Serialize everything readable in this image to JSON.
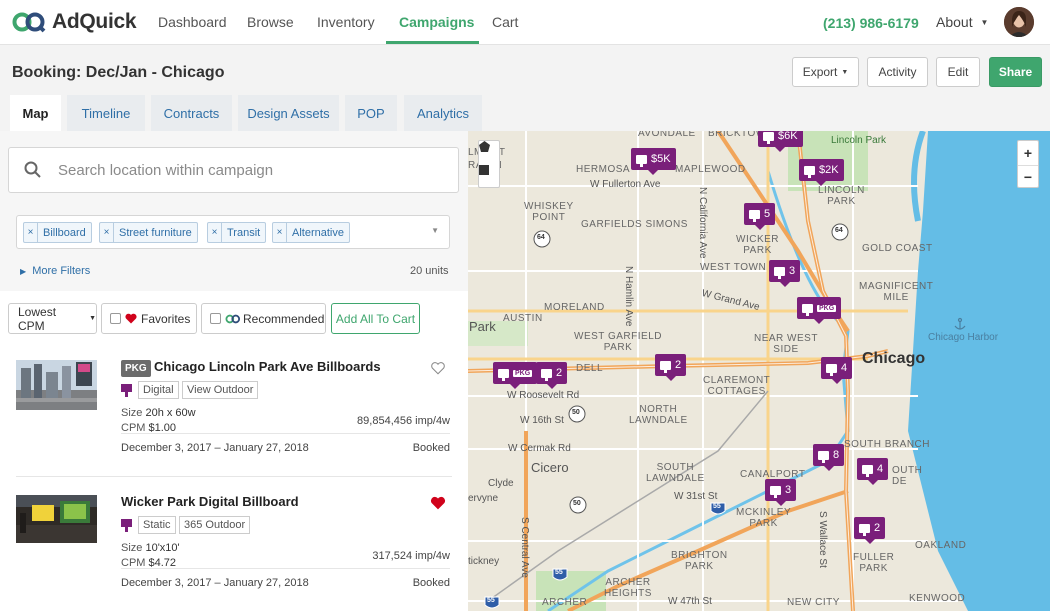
{
  "brand": {
    "name": "AdQuick"
  },
  "nav": {
    "links": [
      "Dashboard",
      "Browse",
      "Inventory",
      "Campaigns",
      "Cart"
    ],
    "active": "Campaigns",
    "phone": "(213) 986-6179",
    "about": "About"
  },
  "header": {
    "title": "Booking: Dec/Jan - Chicago",
    "export_label": "Export",
    "activity_label": "Activity",
    "edit_label": "Edit",
    "share_label": "Share"
  },
  "tabs": [
    {
      "label": "Map",
      "active": true
    },
    {
      "label": "Timeline"
    },
    {
      "label": "Contracts"
    },
    {
      "label": "Design Assets"
    },
    {
      "label": "POP"
    },
    {
      "label": "Analytics"
    }
  ],
  "search": {
    "placeholder": "Search location within campaign"
  },
  "filters": {
    "chips": [
      "Billboard",
      "Street furniture",
      "Transit",
      "Alternative"
    ],
    "more_filters": "More Filters",
    "units": "20 units"
  },
  "controls": {
    "sort": "Lowest CPM",
    "favorites": "Favorites",
    "recommended": "Recommended",
    "add_all": "Add All To Cart"
  },
  "listings": [
    {
      "badge": "PKG",
      "title": "Chicago Lincoln Park Ave Billboards",
      "tags": [
        "Digital",
        "View Outdoor"
      ],
      "size_label": "Size",
      "size": "20h x 60w",
      "cpm_label": "CPM",
      "cpm": "$1.00",
      "impressions": "89,854,456 imp/4w",
      "dates": "December 3, 2017 – January 27, 2018",
      "status": "Booked",
      "favorited": false
    },
    {
      "badge": "",
      "title": "Wicker Park Digital Billboard",
      "tags": [
        "Static",
        "365 Outdoor"
      ],
      "size_label": "Size",
      "size": "10'x10'",
      "cpm_label": "CPM",
      "cpm": "$4.72",
      "impressions": "317,524 imp/4w",
      "dates": "December 3, 2017 – January 27, 2018",
      "status": "Booked",
      "favorited": true
    }
  ],
  "map": {
    "pins": [
      "$6K",
      "$5K",
      "$2K",
      "5",
      "3",
      "PKG",
      "PKG",
      "2",
      "2",
      "4",
      "8",
      "4",
      "3",
      "2"
    ],
    "zoom_in": "+",
    "zoom_out": "−",
    "labels": {
      "avondale": "AVONDALE",
      "bricktown": "BRICKTOWN",
      "lincoln_park_top": "Lincoln Park",
      "almont": "LMONT",
      "craigin": "RAGIN",
      "hermosa": "HERMOSA",
      "maplewood": "MAPLEWOOD",
      "fullerton": "W Fullerton Ave",
      "whiskey_point": "WHISKEY\nPOINT",
      "garfields": "GARFIELDS SIMONS",
      "lincoln_park": "LINCOLN\nPARK",
      "wicker_park": "WICKER\nPARK",
      "west_town": "WEST TOWN",
      "gold_coast": "GOLD COAST",
      "magnificent_mile": "MAGNIFICENT\nMILE",
      "grand_ave": "W Grand Ave",
      "moreland": "MORELAND",
      "austin": "AUSTIN",
      "park": "Park",
      "west_garfield": "WEST GARFIELD\nPARK",
      "near_west": "NEAR WEST\nSIDE",
      "chicago": "Chicago",
      "chicago_harbor": "Chicago Harbor",
      "dell": "DELL",
      "roosevelt": "W Roosevelt Rd",
      "claremont": "CLAREMONT\nCOTTAGES",
      "north_lawndale": "NORTH\nLAWNDALE",
      "w16th": "W 16th St",
      "cermak": "W Cermak Rd",
      "south_branch": "SOUTH BRANCH",
      "clyde": "Clyde",
      "cicero": "Cicero",
      "south_lawndale": "SOUTH\nLAWNDALE",
      "canalport": "CANALPORT",
      "south_side": "OUTH\nDE",
      "berwyn": "ervyne",
      "w31st": "W 31st St",
      "mckinley": "MCKINLEY\nPARK",
      "wallace": "S Wallace St",
      "central": "S Central Ave",
      "fuller_park": "FULLER\nPARK",
      "oakland": "OAKLAND",
      "brighton": "BRIGHTON\nPARK",
      "stickney": "tickney",
      "archer_heights": "ARCHER\nHEIGHTS",
      "archer": "ARCHER",
      "w47th": "W 47th St",
      "new_city": "NEW CITY",
      "kenwood": "KENWOOD",
      "hamlin": "N Hamlin Ave",
      "california": "N California Ave",
      "shield_64a": "64",
      "shield_64b": "64",
      "shield_50a": "50",
      "shield_50b": "50",
      "shield_55a": "55",
      "shield_55b": "55",
      "shield_55c": "55"
    }
  },
  "colors": {
    "brand_green": "#3fa66e",
    "link_blue": "#2f6fa7",
    "pin_purple": "#7a1f7a",
    "water": "#64bde6",
    "highway": "#f1a55a",
    "heart_red": "#d0021b"
  }
}
